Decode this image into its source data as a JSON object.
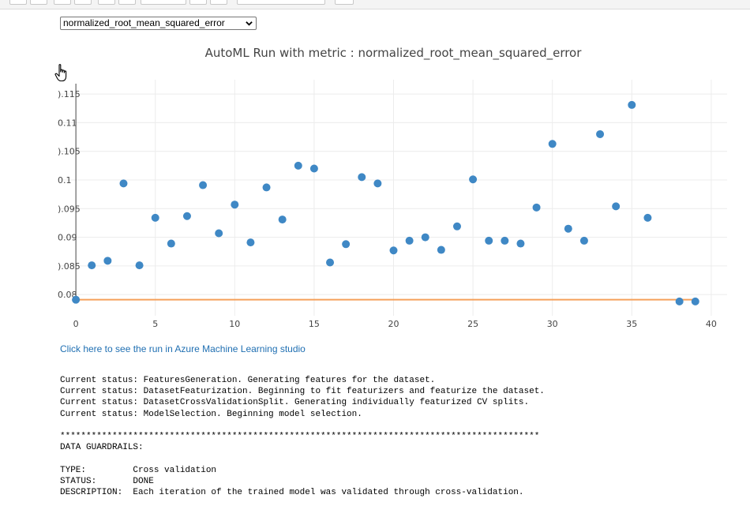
{
  "metric_select": {
    "selected": "normalized_root_mean_squared_error"
  },
  "chart_data": {
    "type": "scatter",
    "title": "AutoML Run with metric : normalized_root_mean_squared_error",
    "xlabel": "",
    "ylabel": "",
    "xlim": [
      -1,
      41
    ],
    "ylim": [
      0.0763,
      0.1175
    ],
    "xticks": [
      0,
      5,
      10,
      15,
      20,
      25,
      30,
      35,
      40
    ],
    "yticks": [
      {
        "value": 0.08,
        "label": "0.08"
      },
      {
        "value": 0.085,
        "label": ").085"
      },
      {
        "value": 0.09,
        "label": "0.09"
      },
      {
        "value": 0.095,
        "label": ").095"
      },
      {
        "value": 0.1,
        "label": "0.1"
      },
      {
        "value": 0.105,
        "label": ").105"
      },
      {
        "value": 0.11,
        "label": "0.11"
      },
      {
        "value": 0.115,
        "label": ").115"
      }
    ],
    "grid": true,
    "series": [
      {
        "color": "#3f88c5",
        "x": [
          0,
          1,
          2,
          3,
          4,
          5,
          6,
          7,
          8,
          9,
          10,
          11,
          12,
          13,
          14,
          15,
          16,
          17,
          18,
          19,
          20,
          21,
          22,
          23,
          24,
          25,
          26,
          27,
          28,
          29,
          30,
          31,
          32,
          33,
          34,
          35,
          36,
          38,
          39
        ],
        "y": [
          0.0791,
          0.0851,
          0.0859,
          0.0994,
          0.0851,
          0.0934,
          0.0889,
          0.0937,
          0.0991,
          0.0907,
          0.0957,
          0.0891,
          0.0987,
          0.0931,
          0.1025,
          0.102,
          0.0856,
          0.0888,
          0.1005,
          0.0994,
          0.0877,
          0.0894,
          0.09,
          0.0878,
          0.0919,
          0.1001,
          0.0894,
          0.0894,
          0.0889,
          0.0952,
          0.1063,
          0.0915,
          0.0894,
          0.108,
          0.0954,
          0.1131,
          0.0934,
          0.0788,
          0.0788
        ]
      },
      {
        "color": "#f5a05a",
        "type": "line",
        "x": [
          0,
          39
        ],
        "y": [
          0.0791,
          0.0791
        ]
      }
    ]
  },
  "studio_link": "Click here to see the run in Azure Machine Learning studio",
  "log_lines": [
    "Current status: FeaturesGeneration. Generating features for the dataset.",
    "Current status: DatasetFeaturization. Beginning to fit featurizers and featurize the dataset.",
    "Current status: DatasetCrossValidationSplit. Generating individually featurized CV splits.",
    "Current status: ModelSelection. Beginning model selection.",
    "",
    "********************************************************************************************",
    "DATA GUARDRAILS:",
    "",
    "TYPE:         Cross validation",
    "STATUS:       DONE",
    "DESCRIPTION:  Each iteration of the trained model was validated through cross-validation."
  ]
}
